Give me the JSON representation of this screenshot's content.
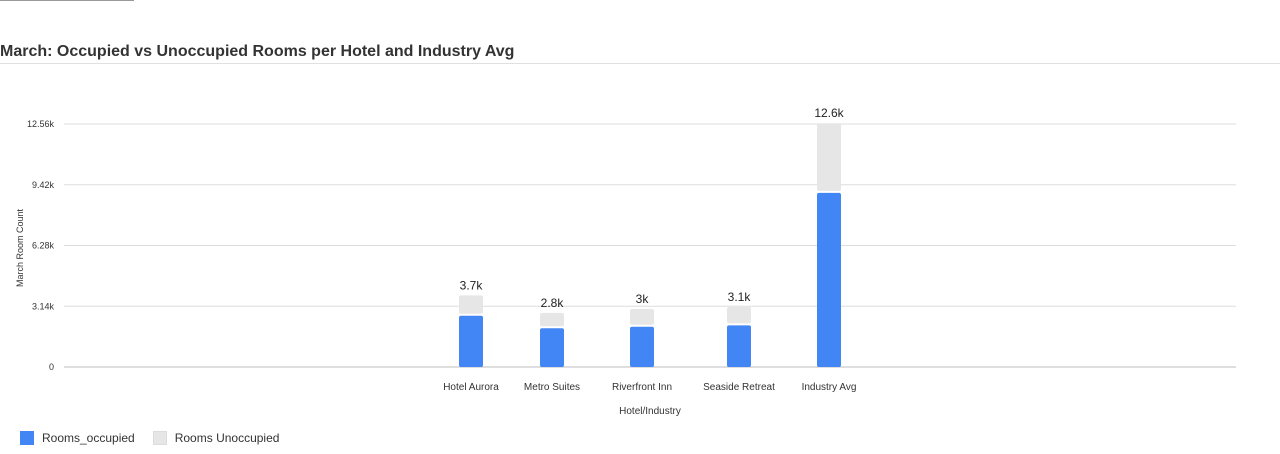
{
  "chart_data": {
    "type": "bar",
    "stacked": true,
    "title": "March: Occupied vs Unoccupied Rooms per Hotel and Industry Avg",
    "xlabel": "Hotel/Industry",
    "ylabel": "March Room Count",
    "categories": [
      "Hotel Aurora",
      "Metro Suites",
      "Riverfront Inn",
      "Seaside Retreat",
      "Industry Avg"
    ],
    "series": [
      {
        "name": "Rooms_occupied",
        "color": "#4285f4",
        "values": [
          2650,
          2000,
          2080,
          2150,
          9000
        ]
      },
      {
        "name": "Rooms Unoccupied",
        "color": "#e6e6e6",
        "values": [
          1050,
          800,
          920,
          950,
          3600
        ]
      }
    ],
    "totals_labels": [
      "3.7k",
      "2.8k",
      "3k",
      "3.1k",
      "12.6k"
    ],
    "yticks": [
      0,
      3140,
      6280,
      9420,
      12560
    ],
    "ytick_labels": [
      "0",
      "3.14k",
      "6.28k",
      "9.42k",
      "12.56k"
    ],
    "ylim": [
      0,
      12560
    ],
    "grid": true,
    "legend_position": "bottom-left"
  }
}
